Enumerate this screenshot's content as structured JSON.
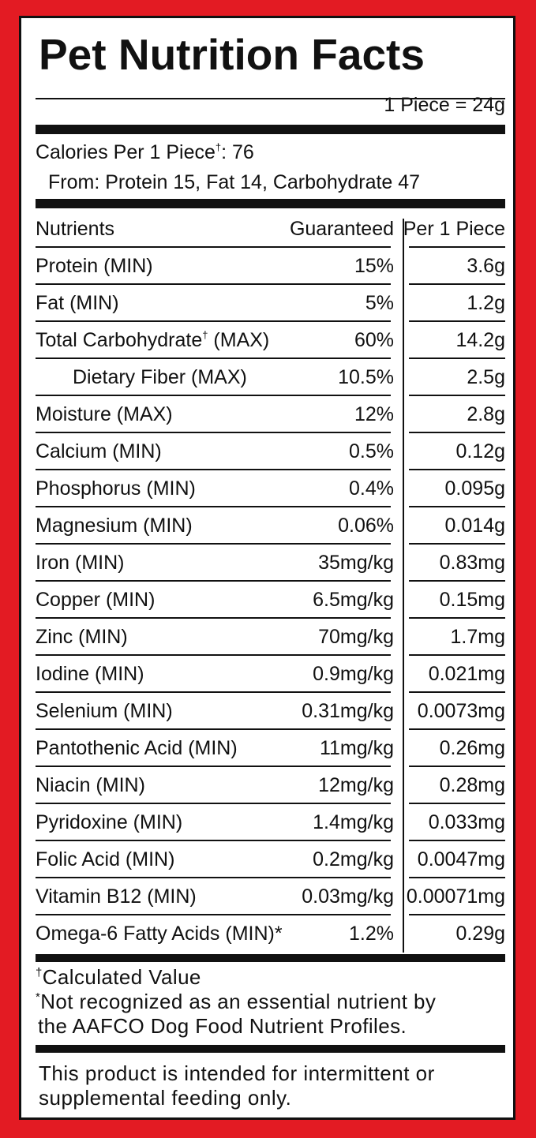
{
  "label": {
    "title": "Pet Nutrition Facts",
    "serving_size": "1 Piece = 24g",
    "calories_line": "Calories Per 1 Piece",
    "calories_dagger": "†",
    "calories_value": ": 76",
    "calories_from": "From: Protein 15, Fat 14, Carbohydrate 47",
    "table": {
      "headers": {
        "nutrients": "Nutrients",
        "guaranteed": "Guaranteed",
        "per_piece": "Per 1 Piece"
      },
      "rows": [
        {
          "name": "Protein (MIN)",
          "guaranteed": "15%",
          "per_piece": "3.6g"
        },
        {
          "name": "Fat (MIN)",
          "guaranteed": "5%",
          "per_piece": "1.2g"
        },
        {
          "name": "Total Carbohydrate",
          "dagger": "†",
          "suffix": " (MAX)",
          "guaranteed": "60%",
          "per_piece": "14.2g"
        },
        {
          "name": "Dietary Fiber (MAX)",
          "indent": true,
          "guaranteed": "10.5%",
          "per_piece": "2.5g"
        },
        {
          "name": "Moisture (MAX)",
          "guaranteed": "12%",
          "per_piece": "2.8g"
        },
        {
          "name": "Calcium (MIN)",
          "guaranteed": "0.5%",
          "per_piece": "0.12g"
        },
        {
          "name": "Phosphorus (MIN)",
          "guaranteed": "0.4%",
          "per_piece": "0.095g"
        },
        {
          "name": "Magnesium (MIN)",
          "guaranteed": "0.06%",
          "per_piece": "0.014g"
        },
        {
          "name": "Iron (MIN)",
          "guaranteed": "35mg/kg",
          "per_piece": "0.83mg"
        },
        {
          "name": "Copper (MIN)",
          "guaranteed": "6.5mg/kg",
          "per_piece": "0.15mg"
        },
        {
          "name": "Zinc (MIN)",
          "guaranteed": "70mg/kg",
          "per_piece": "1.7mg"
        },
        {
          "name": "Iodine (MIN)",
          "guaranteed": "0.9mg/kg",
          "per_piece": "0.021mg"
        },
        {
          "name": "Selenium (MIN)",
          "guaranteed": "0.31mg/kg",
          "per_piece": "0.0073mg"
        },
        {
          "name": "Pantothenic Acid (MIN)",
          "guaranteed": "11mg/kg",
          "per_piece": "0.26mg"
        },
        {
          "name": "Niacin (MIN)",
          "guaranteed": "12mg/kg",
          "per_piece": "0.28mg"
        },
        {
          "name": "Pyridoxine (MIN)",
          "guaranteed": "1.4mg/kg",
          "per_piece": "0.033mg"
        },
        {
          "name": "Folic Acid (MIN)",
          "guaranteed": "0.2mg/kg",
          "per_piece": "0.0047mg"
        },
        {
          "name": "Vitamin B12 (MIN)",
          "guaranteed": "0.03mg/kg",
          "per_piece": "0.00071mg"
        },
        {
          "name": "Omega-6 Fatty Acids (MIN)*",
          "guaranteed": "1.2%",
          "per_piece": "0.29g"
        }
      ]
    },
    "footnotes": {
      "dagger_mark": "†",
      "dagger_text": "Calculated Value",
      "asterisk_mark": "*",
      "asterisk_text_1": "Not recognized as an essential nutrient by",
      "asterisk_text_2": "the AAFCO Dog Food Nutrient Profiles."
    },
    "notice_1": "This product is intended for intermittent or",
    "notice_2": "supplemental feeding only."
  },
  "colors": {
    "border_red": "#e31b23",
    "ink": "#111111",
    "panel": "#ffffff"
  }
}
